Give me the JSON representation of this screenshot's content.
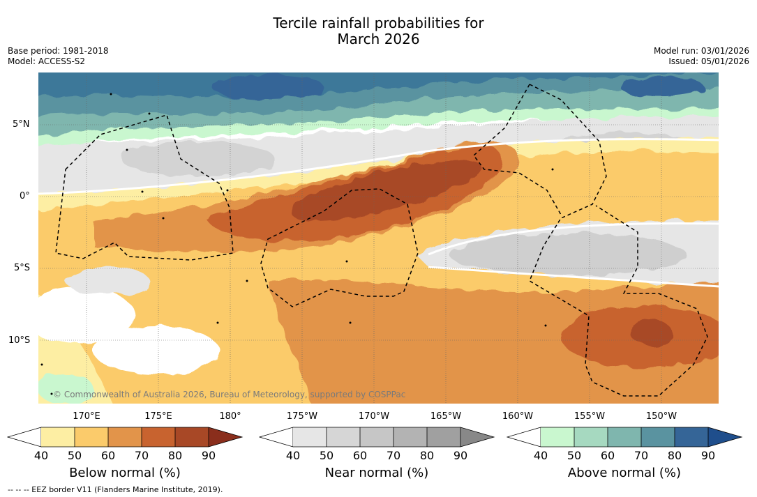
{
  "title": {
    "line1": "Tercile rainfall probabilities for",
    "line2": "March 2026"
  },
  "meta": {
    "base_period": "Base period: 1981-2018",
    "model": "Model: ACCESS-S2",
    "model_run": "Model run: 03/01/2026",
    "issued": "Issued: 05/01/2026"
  },
  "map": {
    "lat_labels": [
      "5°N",
      "0°",
      "5°S",
      "10°S"
    ],
    "lon_labels": [
      "170°E",
      "175°E",
      "180°",
      "175°W",
      "170°W",
      "165°W",
      "160°W",
      "155°W",
      "150°W"
    ],
    "copyright": "© Commonwealth of Australia 2026, Bureau of Meteorology, supported by COSPPac"
  },
  "colorbars": [
    {
      "label": "Below normal (%)",
      "ticks": [
        "40",
        "50",
        "60",
        "70",
        "80",
        "90"
      ],
      "colors": [
        "#ffffff",
        "#fdeea3",
        "#fbcb6b",
        "#e2944a",
        "#c8632f",
        "#a84826",
        "#8a2e1c"
      ]
    },
    {
      "label": "Near normal (%)",
      "ticks": [
        "40",
        "50",
        "60",
        "70",
        "80",
        "90"
      ],
      "colors": [
        "#ffffff",
        "#e6e6e6",
        "#d6d6d6",
        "#c6c6c6",
        "#b3b3b3",
        "#a0a0a0",
        "#888888"
      ]
    },
    {
      "label": "Above normal (%)",
      "ticks": [
        "40",
        "50",
        "60",
        "70",
        "80",
        "90"
      ],
      "colors": [
        "#ffffff",
        "#c9f7cf",
        "#a6d9c0",
        "#7fb6ae",
        "#5a93a0",
        "#356597",
        "#1f4e8c"
      ]
    }
  ],
  "footnote": "-- -- -- EEZ border V11 (Flanders Marine Institute, 2019)."
}
